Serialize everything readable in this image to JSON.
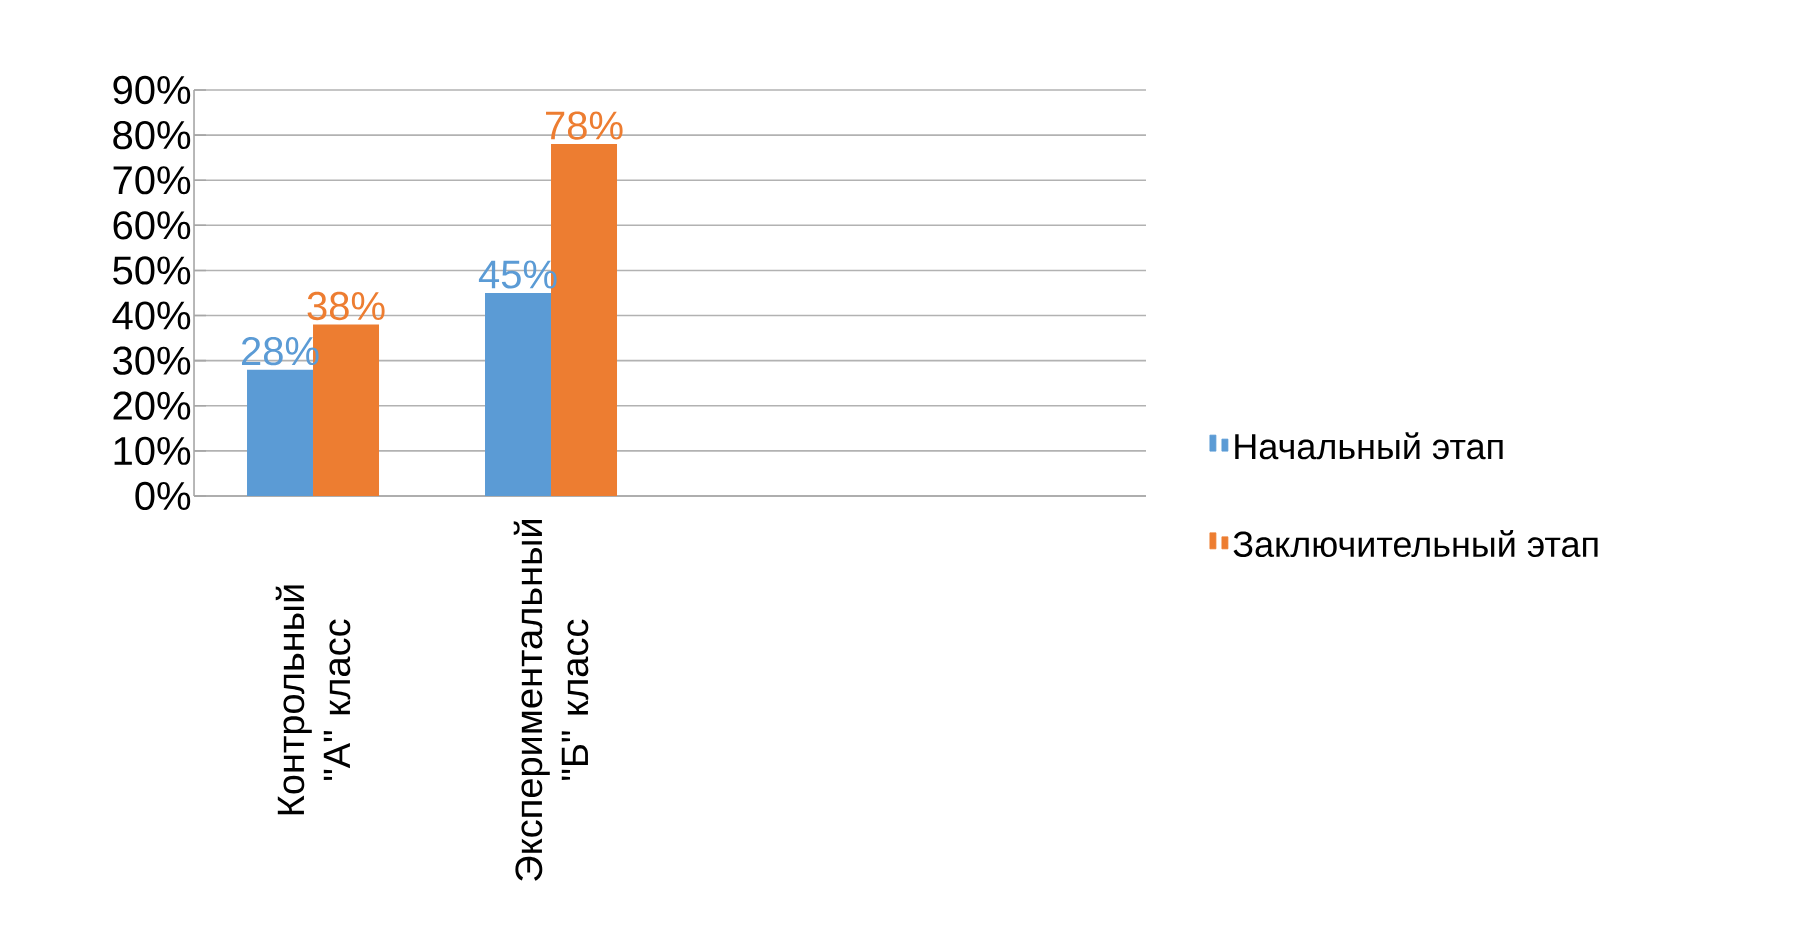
{
  "chart_data": {
    "type": "bar",
    "categories": [
      "Контрольный \"А\" класс",
      "Экспериментальный \"Б\" класс",
      null,
      null
    ],
    "series": [
      {
        "name": "Начальный этап",
        "color": "#5b9bd5",
        "values": [
          28,
          45,
          null,
          null
        ],
        "value_labels": [
          "28%",
          "45%",
          null,
          null
        ]
      },
      {
        "name": "Заключительный этап",
        "color": "#ed7d31",
        "values": [
          38,
          78,
          null,
          null
        ],
        "value_labels": [
          "38%",
          "78%",
          null,
          null
        ]
      }
    ],
    "ylim": [
      0,
      90
    ],
    "yticks": [
      {
        "value": 0,
        "label": "0%"
      },
      {
        "value": 10,
        "label": "10%"
      },
      {
        "value": 20,
        "label": "20%"
      },
      {
        "value": 30,
        "label": "30%"
      },
      {
        "value": 40,
        "label": "40%"
      },
      {
        "value": 50,
        "label": "50%"
      },
      {
        "value": 60,
        "label": "60%"
      },
      {
        "value": 70,
        "label": "70%"
      },
      {
        "value": 80,
        "label": "80%"
      },
      {
        "value": 90,
        "label": "90%"
      }
    ],
    "grid": "y",
    "legend": "right"
  }
}
